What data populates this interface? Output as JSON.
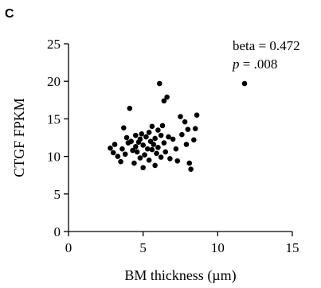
{
  "panel_label": "C",
  "chart_data": {
    "type": "scatter",
    "title": "",
    "xlabel": "BM thickness (µm)",
    "ylabel": "CTGF FPKM",
    "xlim": [
      0,
      15
    ],
    "ylim": [
      0,
      25
    ],
    "xticks": [
      0,
      5,
      10,
      15
    ],
    "yticks": [
      0,
      5,
      10,
      15,
      20,
      25
    ],
    "grid": false,
    "legend": "none",
    "marker_color": "#000000",
    "annotations": {
      "beta": "beta = 0.472",
      "p_symbol": "p",
      "p_value": " = .008"
    },
    "points": [
      {
        "x": 2.8,
        "y": 11.1
      },
      {
        "x": 3.0,
        "y": 10.5
      },
      {
        "x": 3.1,
        "y": 11.6
      },
      {
        "x": 3.3,
        "y": 10.0
      },
      {
        "x": 3.5,
        "y": 9.3
      },
      {
        "x": 3.6,
        "y": 11.0
      },
      {
        "x": 3.7,
        "y": 13.8
      },
      {
        "x": 3.8,
        "y": 10.3
      },
      {
        "x": 3.9,
        "y": 12.5
      },
      {
        "x": 4.0,
        "y": 11.8
      },
      {
        "x": 4.1,
        "y": 16.4
      },
      {
        "x": 4.2,
        "y": 12.0
      },
      {
        "x": 4.3,
        "y": 10.8
      },
      {
        "x": 4.4,
        "y": 9.1
      },
      {
        "x": 4.5,
        "y": 12.8
      },
      {
        "x": 4.5,
        "y": 11.3
      },
      {
        "x": 4.6,
        "y": 10.6
      },
      {
        "x": 4.7,
        "y": 11.9
      },
      {
        "x": 4.8,
        "y": 12.3
      },
      {
        "x": 4.8,
        "y": 9.8
      },
      {
        "x": 4.9,
        "y": 13.0
      },
      {
        "x": 5.0,
        "y": 11.5
      },
      {
        "x": 5.0,
        "y": 8.5
      },
      {
        "x": 5.1,
        "y": 10.2
      },
      {
        "x": 5.2,
        "y": 12.6
      },
      {
        "x": 5.3,
        "y": 11.0
      },
      {
        "x": 5.4,
        "y": 9.5
      },
      {
        "x": 5.4,
        "y": 13.2
      },
      {
        "x": 5.5,
        "y": 12.0
      },
      {
        "x": 5.6,
        "y": 10.9
      },
      {
        "x": 5.6,
        "y": 14.0
      },
      {
        "x": 5.7,
        "y": 11.6
      },
      {
        "x": 5.8,
        "y": 8.8
      },
      {
        "x": 5.8,
        "y": 12.4
      },
      {
        "x": 5.9,
        "y": 10.4
      },
      {
        "x": 6.0,
        "y": 13.5
      },
      {
        "x": 6.0,
        "y": 11.2
      },
      {
        "x": 6.1,
        "y": 19.7
      },
      {
        "x": 6.2,
        "y": 12.8
      },
      {
        "x": 6.2,
        "y": 9.9
      },
      {
        "x": 6.3,
        "y": 14.1
      },
      {
        "x": 6.4,
        "y": 17.4
      },
      {
        "x": 6.4,
        "y": 11.8
      },
      {
        "x": 6.5,
        "y": 10.6
      },
      {
        "x": 6.6,
        "y": 17.9
      },
      {
        "x": 6.7,
        "y": 12.6
      },
      {
        "x": 6.8,
        "y": 9.7
      },
      {
        "x": 7.0,
        "y": 12.3
      },
      {
        "x": 7.2,
        "y": 11.0
      },
      {
        "x": 7.3,
        "y": 9.4
      },
      {
        "x": 7.5,
        "y": 15.3
      },
      {
        "x": 7.6,
        "y": 12.9
      },
      {
        "x": 7.8,
        "y": 14.6
      },
      {
        "x": 7.9,
        "y": 11.6
      },
      {
        "x": 8.0,
        "y": 13.6
      },
      {
        "x": 8.1,
        "y": 9.1
      },
      {
        "x": 8.2,
        "y": 8.3
      },
      {
        "x": 8.4,
        "y": 12.2
      },
      {
        "x": 8.5,
        "y": 13.7
      },
      {
        "x": 8.6,
        "y": 15.5
      },
      {
        "x": 11.8,
        "y": 19.7
      }
    ]
  }
}
